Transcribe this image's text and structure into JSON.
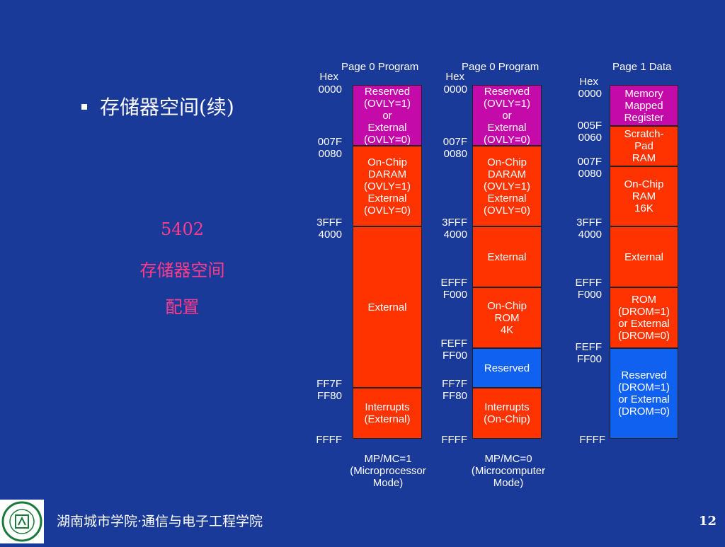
{
  "slide": {
    "bullet": "存储器空间(续)",
    "side_lines": [
      "5402",
      "存储器空间",
      "配置"
    ]
  },
  "colors": {
    "background": "#1a3a9a",
    "reserved": "#c40aa8",
    "onchip": "#ff3300",
    "reserved_blue": "#1161f0",
    "side_text": "#ff3b8b"
  },
  "col1": {
    "header": "Page 0 Program",
    "hex": "Hex",
    "addrs": [
      "0000",
      "007F",
      "0080",
      "3FFF",
      "4000",
      "FF7F",
      "FF80",
      "FFFF"
    ],
    "blocks": [
      "Reserved\n(OVLY=1)\nor\nExternal\n(OVLY=0)",
      "On-Chip\nDARAM\n(OVLY=1)\nExternal\n(OVLY=0)",
      "External",
      "Interrupts\n(External)"
    ],
    "footer": "MP/MC=1\n(Microprocessor\nMode)"
  },
  "col2": {
    "header": "Page 0 Program",
    "hex": "Hex",
    "addrs": [
      "0000",
      "007F",
      "0080",
      "3FFF",
      "4000",
      "EFFF",
      "F000",
      "FEFF",
      "FF00",
      "FF7F",
      "FF80",
      "FFFF"
    ],
    "blocks": [
      "Reserved\n(OVLY=1)\nor\nExternal\n(OVLY=0)",
      "On-Chip\nDARAM\n(OVLY=1)\nExternal\n(OVLY=0)",
      "External",
      "On-Chip\nROM\n4K",
      "Reserved",
      "Interrupts\n(On-Chip)"
    ],
    "footer": "MP/MC=0\n(Microcomputer\nMode)"
  },
  "col3": {
    "header": "Page 1 Data",
    "hex": "Hex",
    "addrs": [
      "0000",
      "005F",
      "0060",
      "007F",
      "0080",
      "3FFF",
      "4000",
      "EFFF",
      "F000",
      "FEFF",
      "FF00",
      "FFFF"
    ],
    "blocks": [
      "Memory\nMapped\nRegister",
      "Scratch-\nPad\nRAM",
      "On-Chip\nRAM\n16K",
      "External",
      "ROM\n(DROM=1)\nor External\n(DROM=0)",
      "Reserved\n(DROM=1)\nor External\n(DROM=0)"
    ]
  },
  "footer": {
    "institution": "湖南城市学院·通信与电子工程学院",
    "page": "12"
  }
}
